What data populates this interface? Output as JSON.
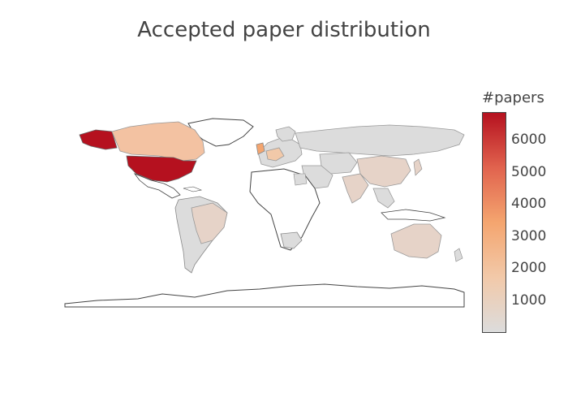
{
  "title": "Accepted paper distribution",
  "colorbar": {
    "title": "#papers",
    "ticks": [
      "6000",
      "5000",
      "4000",
      "3000",
      "2000",
      "1000"
    ],
    "tick_values": [
      6000,
      5000,
      4000,
      3000,
      2000,
      1000
    ],
    "range": [
      0,
      6900
    ],
    "colorscale": [
      "#dcdcdc",
      "#f2c9a9",
      "#f4a56f",
      "#e1634e",
      "#b5111f"
    ]
  },
  "map": {
    "type": "choropleth",
    "countries": [
      {
        "name": "United States",
        "value": 6800
      },
      {
        "name": "Canada",
        "value": 1600
      },
      {
        "name": "United Kingdom",
        "value": 2200
      },
      {
        "name": "France",
        "value": 700
      },
      {
        "name": "Germany",
        "value": 900
      },
      {
        "name": "China",
        "value": 400
      },
      {
        "name": "Australia",
        "value": 500
      },
      {
        "name": "Brazil",
        "value": 350
      },
      {
        "name": "India",
        "value": 250
      },
      {
        "name": "Japan",
        "value": 300
      },
      {
        "name": "Russia",
        "value": 150
      }
    ]
  }
}
